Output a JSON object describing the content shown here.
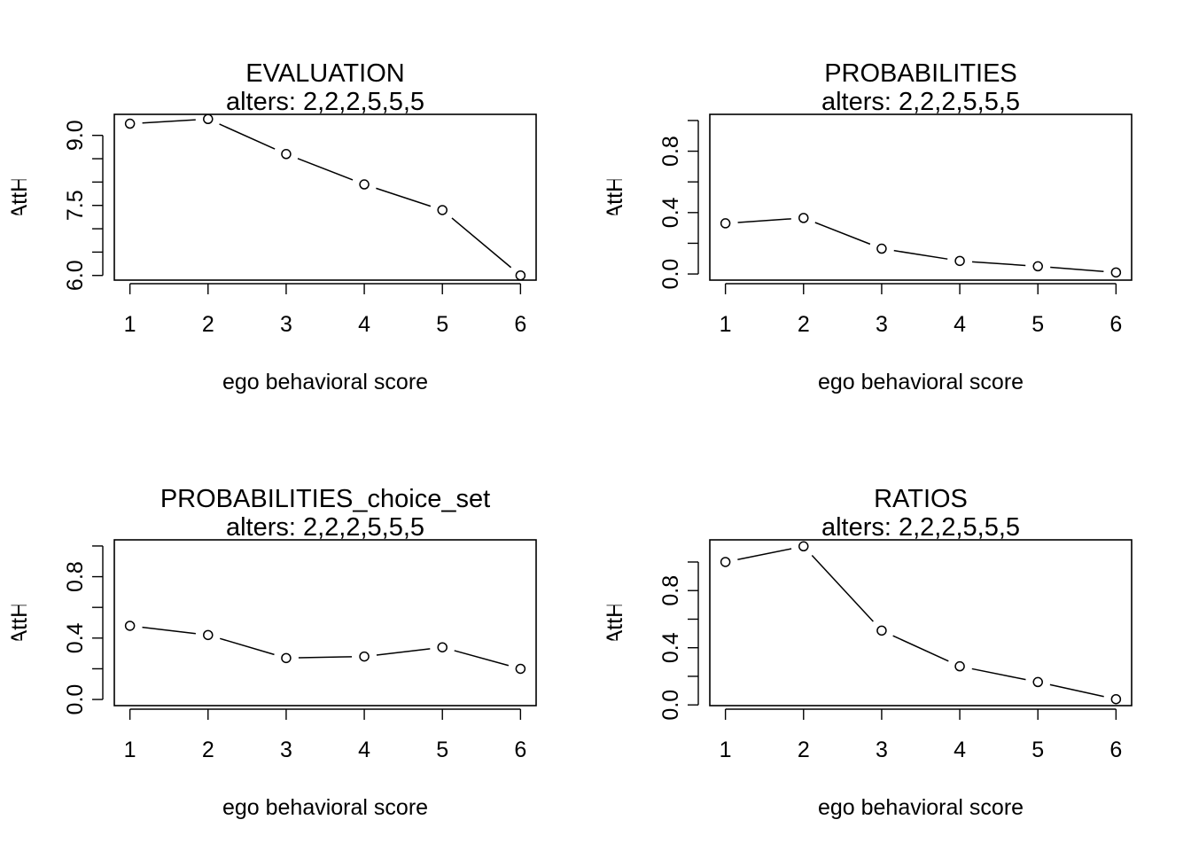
{
  "chart_data": [
    {
      "type": "line",
      "title": "EVALUATION",
      "subtitle": "alters: 2,2,2,5,5,5",
      "xlabel": "ego behavioral score",
      "ylabel": "flinear, fquad, favAttHigher, favAttLowe",
      "x": [
        1,
        2,
        3,
        4,
        5,
        6
      ],
      "values": [
        9.25,
        9.35,
        8.6,
        7.95,
        7.4,
        6.0
      ],
      "xticks": [
        "1",
        "2",
        "3",
        "4",
        "5",
        "6"
      ],
      "yticks": [
        {
          "value": 6.0,
          "label": "6.0"
        },
        {
          "value": 7.5,
          "label": "7.5"
        },
        {
          "value": 9.0,
          "label": "9.0"
        }
      ],
      "yminor": [
        6.5,
        7.0,
        8.0,
        8.5
      ],
      "xlim": [
        0.8,
        6.2
      ],
      "ylim": [
        5.9,
        9.45
      ],
      "grid": false,
      "legend": "none"
    },
    {
      "type": "line",
      "title": "PROBABILITIES",
      "subtitle": "alters: 2,2,2,5,5,5",
      "xlabel": "ego behavioral score",
      "ylabel": "flinear, fquad, favAttHigher, favAttLowe",
      "x": [
        1,
        2,
        3,
        4,
        5,
        6
      ],
      "values": [
        0.33,
        0.365,
        0.165,
        0.085,
        0.05,
        0.01
      ],
      "xticks": [
        "1",
        "2",
        "3",
        "4",
        "5",
        "6"
      ],
      "yticks": [
        {
          "value": 0.0,
          "label": "0.0"
        },
        {
          "value": 0.4,
          "label": "0.4"
        },
        {
          "value": 0.8,
          "label": "0.8"
        }
      ],
      "yminor": [
        0.2,
        0.6,
        1.0
      ],
      "xlim": [
        0.8,
        6.2
      ],
      "ylim": [
        -0.04,
        1.04
      ],
      "grid": false,
      "legend": "none"
    },
    {
      "type": "line",
      "title": "PROBABILITIES_choice_set",
      "subtitle": "alters: 2,2,2,5,5,5",
      "xlabel": "ego behavioral score",
      "ylabel": "flinear, fquad, favAttHigher, favAttLowe",
      "x": [
        1,
        2,
        3,
        4,
        5,
        6
      ],
      "values": [
        0.48,
        0.42,
        0.27,
        0.28,
        0.34,
        0.2
      ],
      "xticks": [
        "1",
        "2",
        "3",
        "4",
        "5",
        "6"
      ],
      "yticks": [
        {
          "value": 0.0,
          "label": "0.0"
        },
        {
          "value": 0.4,
          "label": "0.4"
        },
        {
          "value": 0.8,
          "label": "0.8"
        }
      ],
      "yminor": [
        0.2,
        0.6,
        1.0
      ],
      "xlim": [
        0.8,
        6.2
      ],
      "ylim": [
        -0.04,
        1.04
      ],
      "grid": false,
      "legend": "none"
    },
    {
      "type": "line",
      "title": "RATIOS",
      "subtitle": "alters: 2,2,2,5,5,5",
      "xlabel": "ego behavioral score",
      "ylabel": "flinear, fquad, favAttHigher, favAttLowe",
      "x": [
        1,
        2,
        3,
        4,
        5,
        6
      ],
      "values": [
        1.0,
        1.11,
        0.52,
        0.27,
        0.16,
        0.04
      ],
      "xticks": [
        "1",
        "2",
        "3",
        "4",
        "5",
        "6"
      ],
      "yticks": [
        {
          "value": 0.0,
          "label": "0.0"
        },
        {
          "value": 0.4,
          "label": "0.4"
        },
        {
          "value": 0.8,
          "label": "0.8"
        }
      ],
      "yminor": [
        0.2,
        0.6,
        1.0
      ],
      "xlim": [
        0.8,
        6.2
      ],
      "ylim": [
        -0.005,
        1.155
      ],
      "grid": false,
      "legend": "none"
    }
  ]
}
